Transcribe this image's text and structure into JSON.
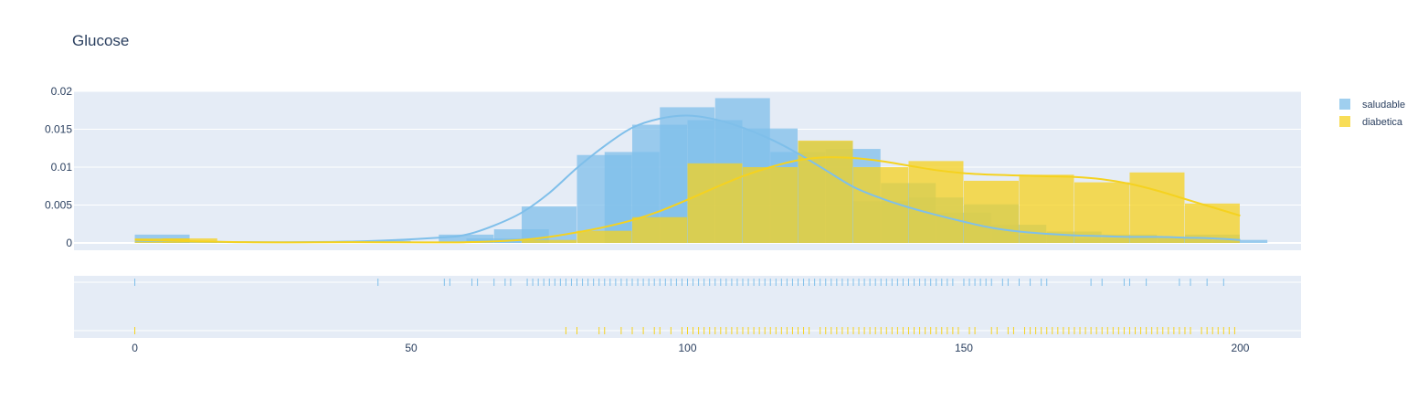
{
  "chart_data": {
    "type": "histogram",
    "title": "Glucose",
    "xlabel": "",
    "ylabel": "",
    "x_range": [
      -11,
      211
    ],
    "y_range": [
      0,
      0.02
    ],
    "x_ticks": [
      0,
      50,
      100,
      150,
      200
    ],
    "y_ticks": [
      0,
      0.005,
      0.01,
      0.015,
      0.02
    ],
    "y_tick_labels": [
      "0",
      "0.005",
      "0.01",
      "0.015",
      "0.02"
    ],
    "bin_width": 10,
    "grid": true,
    "legend": "right",
    "colors": {
      "saludable": "#7fbfea",
      "diabetica": "#f5d21f",
      "plot_bg": "#e5ecf6",
      "grid": "#ffffff"
    },
    "series": [
      {
        "name": "saludable",
        "bins": [
          {
            "x": 0,
            "y": 0.0011
          },
          {
            "x": 40,
            "y": 0.0003
          },
          {
            "x": 55,
            "y": 0.0011
          },
          {
            "x": 60,
            "y": 0.0006
          },
          {
            "x": 65,
            "y": 0.0018
          },
          {
            "x": 70,
            "y": 0.0048
          },
          {
            "x": 80,
            "y": 0.0116
          },
          {
            "x": 85,
            "y": 0.012
          },
          {
            "x": 90,
            "y": 0.0156
          },
          {
            "x": 95,
            "y": 0.0179
          },
          {
            "x": 100,
            "y": 0.0162
          },
          {
            "x": 105,
            "y": 0.0191
          },
          {
            "x": 110,
            "y": 0.0151
          },
          {
            "x": 115,
            "y": 0.012
          },
          {
            "x": 120,
            "y": 0.0134
          },
          {
            "x": 125,
            "y": 0.0124
          },
          {
            "x": 130,
            "y": 0.0055
          },
          {
            "x": 135,
            "y": 0.0079
          },
          {
            "x": 140,
            "y": 0.006
          },
          {
            "x": 145,
            "y": 0.004
          },
          {
            "x": 150,
            "y": 0.0051
          },
          {
            "x": 155,
            "y": 0.0024
          },
          {
            "x": 160,
            "y": 0.0011
          },
          {
            "x": 165,
            "y": 0.0015
          },
          {
            "x": 170,
            "y": 0.0006
          },
          {
            "x": 175,
            "y": 0.0011
          },
          {
            "x": 180,
            "y": 0.0008
          },
          {
            "x": 185,
            "y": 0.0006
          },
          {
            "x": 190,
            "y": 0.0011
          },
          {
            "x": 195,
            "y": 0.0004
          }
        ],
        "kde": [
          [
            0,
            0.0003
          ],
          [
            20,
            0.0001
          ],
          [
            40,
            0.0002
          ],
          [
            55,
            0.0007
          ],
          [
            60,
            0.0011
          ],
          [
            65,
            0.0023
          ],
          [
            70,
            0.004
          ],
          [
            75,
            0.0066
          ],
          [
            80,
            0.0099
          ],
          [
            85,
            0.0128
          ],
          [
            90,
            0.0152
          ],
          [
            95,
            0.0164
          ],
          [
            100,
            0.0168
          ],
          [
            105,
            0.0163
          ],
          [
            110,
            0.0152
          ],
          [
            115,
            0.0137
          ],
          [
            120,
            0.0118
          ],
          [
            125,
            0.0096
          ],
          [
            130,
            0.0074
          ],
          [
            135,
            0.0059
          ],
          [
            140,
            0.0047
          ],
          [
            145,
            0.0037
          ],
          [
            150,
            0.0028
          ],
          [
            155,
            0.002
          ],
          [
            160,
            0.0015
          ],
          [
            165,
            0.0012
          ],
          [
            170,
            0.001
          ],
          [
            175,
            0.0009
          ],
          [
            180,
            0.0008
          ],
          [
            185,
            0.0008
          ],
          [
            190,
            0.0007
          ],
          [
            195,
            0.0006
          ],
          [
            200,
            0.0004
          ]
        ],
        "rug": [
          0,
          44,
          56,
          57,
          61,
          62,
          65,
          67,
          68,
          71,
          72,
          73,
          74,
          75,
          76,
          77,
          78,
          79,
          80,
          81,
          82,
          83,
          84,
          85,
          86,
          87,
          88,
          89,
          90,
          91,
          92,
          93,
          94,
          95,
          96,
          97,
          98,
          99,
          100,
          101,
          102,
          103,
          104,
          105,
          106,
          107,
          108,
          109,
          110,
          111,
          112,
          113,
          114,
          115,
          116,
          117,
          118,
          119,
          120,
          121,
          122,
          123,
          124,
          125,
          126,
          127,
          128,
          129,
          130,
          131,
          132,
          133,
          134,
          135,
          136,
          137,
          138,
          139,
          140,
          141,
          142,
          143,
          144,
          145,
          146,
          147,
          148,
          150,
          151,
          152,
          153,
          154,
          155,
          157,
          158,
          160,
          162,
          164,
          165,
          173,
          175,
          179,
          180,
          183,
          189,
          191,
          194,
          197
        ]
      },
      {
        "name": "diabetica",
        "bins": [
          {
            "x": 0,
            "y": 0.0006
          },
          {
            "x": 5,
            "y": 0.0006
          },
          {
            "x": 70,
            "y": 0.0004
          },
          {
            "x": 80,
            "y": 0.0016
          },
          {
            "x": 90,
            "y": 0.0034
          },
          {
            "x": 100,
            "y": 0.0105
          },
          {
            "x": 110,
            "y": 0.01
          },
          {
            "x": 120,
            "y": 0.0135
          },
          {
            "x": 130,
            "y": 0.01
          },
          {
            "x": 140,
            "y": 0.0108
          },
          {
            "x": 150,
            "y": 0.0082
          },
          {
            "x": 160,
            "y": 0.009
          },
          {
            "x": 170,
            "y": 0.008
          },
          {
            "x": 180,
            "y": 0.0093
          },
          {
            "x": 190,
            "y": 0.0052
          }
        ],
        "kde": [
          [
            0,
            0.0004
          ],
          [
            20,
            0.0001
          ],
          [
            40,
            0.0001
          ],
          [
            60,
            0.0001
          ],
          [
            70,
            0.0004
          ],
          [
            75,
            0.0008
          ],
          [
            80,
            0.0014
          ],
          [
            85,
            0.0021
          ],
          [
            90,
            0.003
          ],
          [
            95,
            0.0042
          ],
          [
            100,
            0.0057
          ],
          [
            105,
            0.0073
          ],
          [
            110,
            0.0088
          ],
          [
            115,
            0.01
          ],
          [
            120,
            0.0109
          ],
          [
            125,
            0.0113
          ],
          [
            130,
            0.0112
          ],
          [
            135,
            0.0108
          ],
          [
            140,
            0.0102
          ],
          [
            145,
            0.0096
          ],
          [
            150,
            0.0092
          ],
          [
            155,
            0.009
          ],
          [
            160,
            0.0089
          ],
          [
            165,
            0.0088
          ],
          [
            170,
            0.0087
          ],
          [
            175,
            0.0084
          ],
          [
            180,
            0.0078
          ],
          [
            185,
            0.0069
          ],
          [
            190,
            0.0058
          ],
          [
            195,
            0.0047
          ],
          [
            200,
            0.0036
          ]
        ],
        "rug": [
          0,
          78,
          80,
          84,
          85,
          88,
          90,
          92,
          94,
          95,
          97,
          99,
          100,
          101,
          102,
          103,
          104,
          105,
          106,
          107,
          108,
          109,
          110,
          111,
          112,
          113,
          114,
          115,
          116,
          117,
          118,
          119,
          120,
          121,
          122,
          124,
          125,
          126,
          127,
          128,
          129,
          130,
          131,
          132,
          133,
          134,
          135,
          136,
          137,
          138,
          139,
          140,
          141,
          142,
          143,
          144,
          145,
          146,
          147,
          148,
          149,
          151,
          152,
          155,
          156,
          158,
          159,
          161,
          162,
          163,
          164,
          165,
          166,
          167,
          168,
          169,
          170,
          171,
          172,
          173,
          174,
          175,
          176,
          177,
          178,
          179,
          180,
          181,
          182,
          183,
          184,
          185,
          186,
          187,
          188,
          189,
          190,
          191,
          193,
          194,
          195,
          196,
          197,
          198,
          199
        ]
      }
    ]
  }
}
